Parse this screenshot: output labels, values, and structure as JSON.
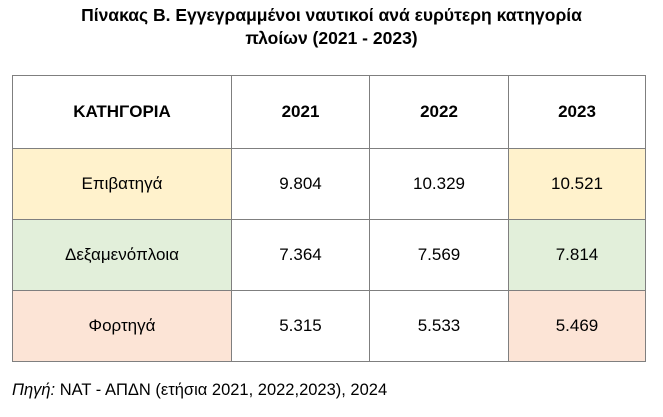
{
  "title": {
    "line1": "Πίνακας Β. Εγγεγραμμένοι ναυτικοί ανά ευρύτερη κατηγορία",
    "line2": "πλοίων (2021 - 2023)"
  },
  "table": {
    "headers": [
      "ΚΑΤΗΓΟΡΙΑ",
      "2021",
      "2022",
      "2023"
    ],
    "rows": [
      {
        "category": "Επιβατηγά",
        "y2021": "9.804",
        "y2022": "10.329",
        "y2023": "10.521"
      },
      {
        "category": "Δεξαμενόπλοια",
        "y2021": "7.364",
        "y2022": "7.569",
        "y2023": "7.814"
      },
      {
        "category": "Φορτηγά",
        "y2021": "5.315",
        "y2022": "5.533",
        "y2023": "5.469"
      }
    ],
    "row_colors": [
      "#fff2cc",
      "#e2efda",
      "#fce4d6"
    ]
  },
  "chart_data": {
    "type": "table",
    "title": "Πίνακας Β. Εγγεγραμμένοι ναυτικοί ανά ευρύτερη κατηγορία πλοίων (2021 - 2023)",
    "columns": [
      "ΚΑΤΗΓΟΡΙΑ",
      "2021",
      "2022",
      "2023"
    ],
    "categories": [
      "Επιβατηγά",
      "Δεξαμενόπλοια",
      "Φορτηγά"
    ],
    "series": [
      {
        "name": "2021",
        "values": [
          9804,
          7364,
          5315
        ]
      },
      {
        "name": "2022",
        "values": [
          10329,
          7569,
          5533
        ]
      },
      {
        "name": "2023",
        "values": [
          10521,
          7814,
          5469
        ]
      }
    ]
  },
  "source": {
    "label": "Πηγή:",
    "text": " ΝΑΤ - ΑΠΔΝ (ετήσια 2021, 2022,2023), 2024"
  }
}
